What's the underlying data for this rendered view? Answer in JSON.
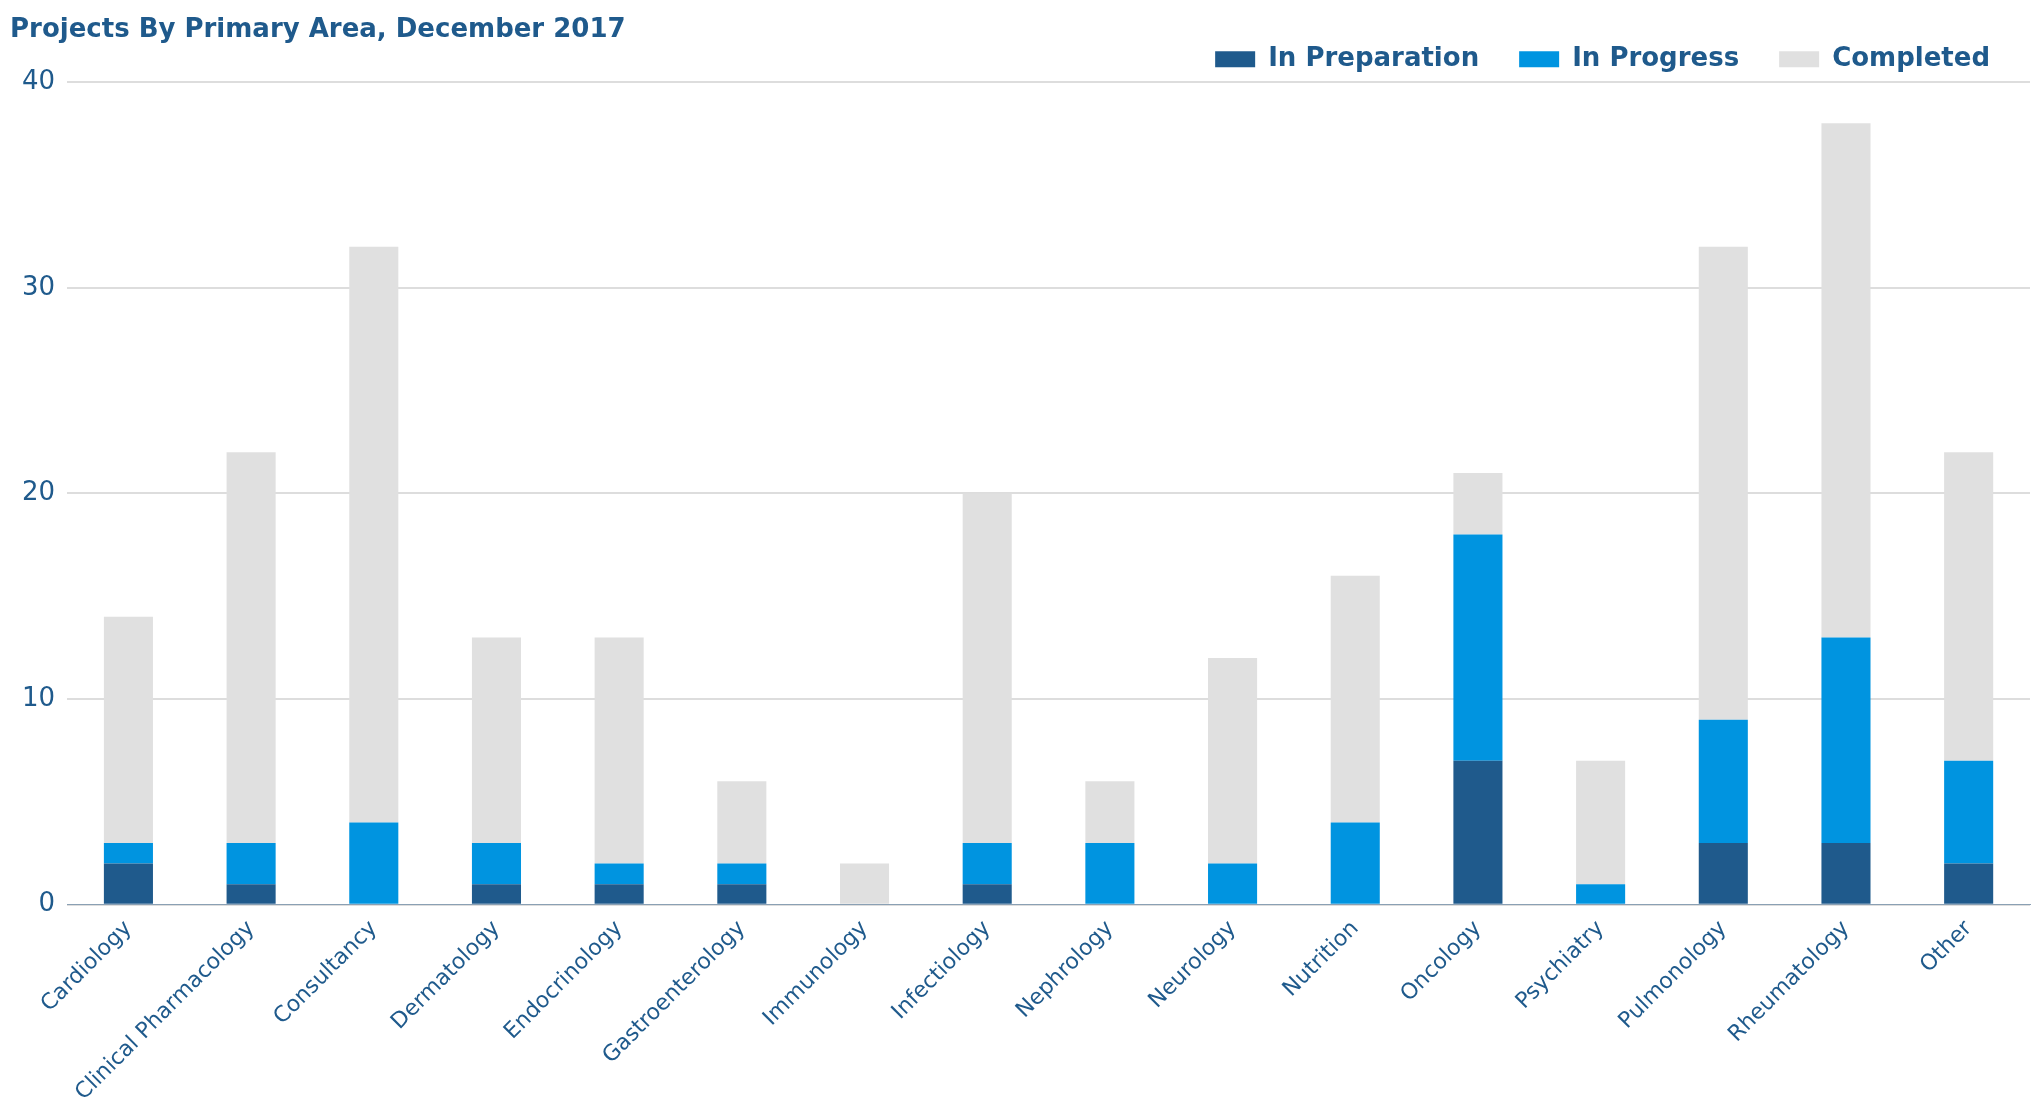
{
  "chart_data": {
    "type": "bar",
    "title": "Projects By Primary Area, December 2017",
    "stacked": true,
    "legend": "top right",
    "grid": "y",
    "categories": [
      "Cardiology",
      "Clinical Pharmacology",
      "Consultancy",
      "Dermatology",
      "Endocrinology",
      "Gastroenterology",
      "Immunology",
      "Infectiology",
      "Nephrology",
      "Neurology",
      "Nutrition",
      "Oncology",
      "Psychiatry",
      "Pulmonology",
      "Rheumatology",
      "Other"
    ],
    "series": [
      {
        "name": "In Preparation",
        "color": "#1f5a8c",
        "values": [
          2,
          1,
          0,
          1,
          1,
          1,
          0,
          1,
          0,
          0,
          0,
          7,
          0,
          3,
          3,
          2
        ]
      },
      {
        "name": "In Progress",
        "color": "#0094e0",
        "values": [
          1,
          2,
          4,
          2,
          1,
          1,
          0,
          2,
          3,
          2,
          4,
          11,
          1,
          6,
          10,
          5
        ]
      },
      {
        "name": "Completed",
        "color": "#e0e0e0",
        "values": [
          11,
          19,
          28,
          10,
          11,
          4,
          2,
          17,
          3,
          10,
          12,
          3,
          6,
          23,
          25,
          15
        ]
      }
    ],
    "ylim": [
      0,
      40
    ],
    "yticks": [
      0,
      10,
      20,
      30,
      40
    ]
  }
}
